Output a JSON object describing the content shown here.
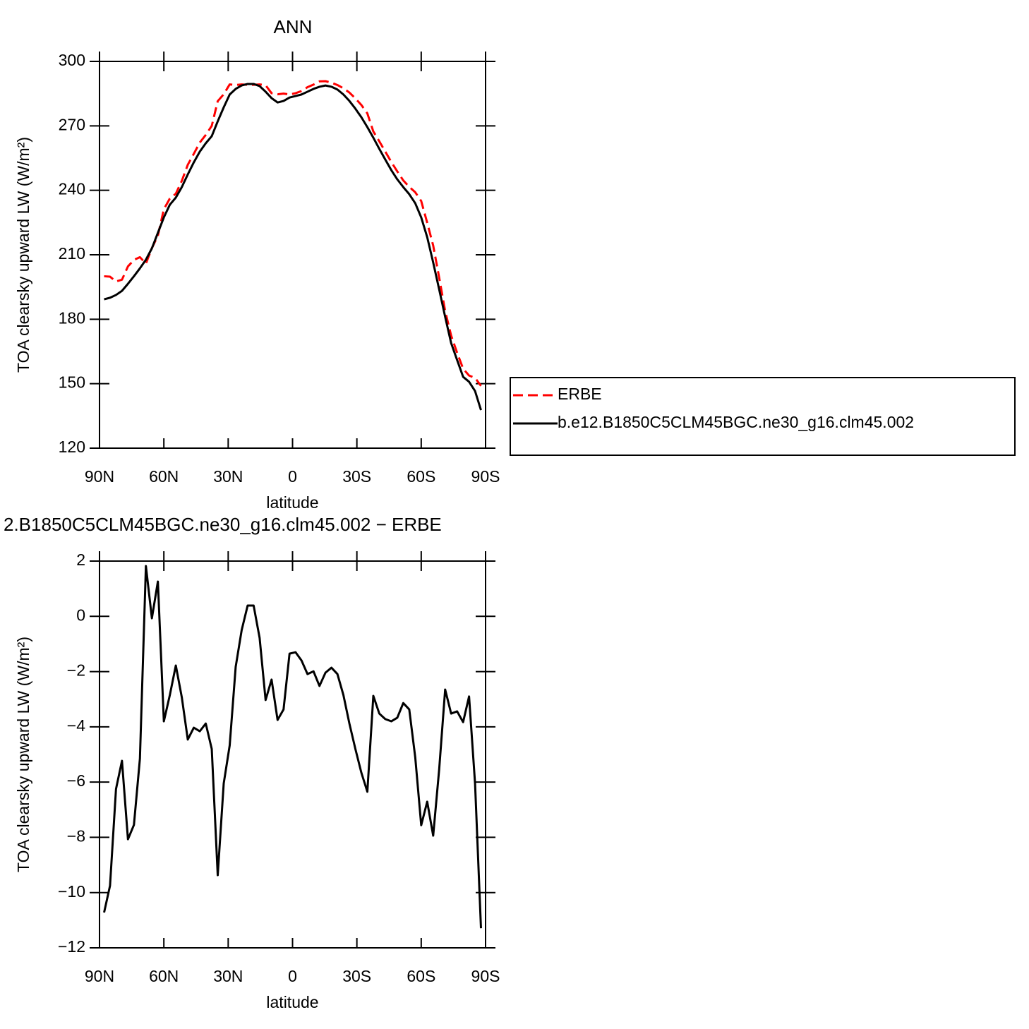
{
  "chart_data": [
    {
      "type": "line",
      "title": "ANN",
      "xlabel": "latitude",
      "ylabel": "TOA clearsky upward LW (W/m²)",
      "x": [
        87.86,
        85.1,
        82.31,
        79.53,
        76.74,
        73.95,
        71.16,
        68.37,
        65.58,
        62.79,
        60,
        57.21,
        54.42,
        51.63,
        48.84,
        46.04,
        43.25,
        40.46,
        37.67,
        34.88,
        32.09,
        29.3,
        26.51,
        23.72,
        20.93,
        18.14,
        15.35,
        12.56,
        9.77,
        6.98,
        4.19,
        1.4,
        -1.4,
        -4.19,
        -6.98,
        -9.77,
        -12.56,
        -15.35,
        -18.14,
        -20.93,
        -23.72,
        -26.51,
        -29.3,
        -32.09,
        -34.88,
        -37.67,
        -40.46,
        -43.25,
        -46.04,
        -48.84,
        -51.63,
        -54.42,
        -57.21,
        -60,
        -62.79,
        -65.58,
        -68.37,
        -71.16,
        -73.95,
        -76.74,
        -79.53,
        -82.31,
        -85.1,
        -87.86
      ],
      "series": [
        {
          "name": "ERBE",
          "color": "#ff0000",
          "dashed": true,
          "values": [
            200.0,
            199.8,
            197.6,
            198.4,
            204.6,
            207.6,
            208.9,
            205.9,
            213.1,
            218.9,
            231.2,
            236.2,
            238.4,
            244.4,
            251.9,
            257.0,
            262.2,
            265.8,
            270.0,
            281.5,
            284.7,
            289.3,
            289.0,
            289.3,
            289.1,
            289.1,
            289.3,
            288.9,
            285.2,
            284.7,
            285.0,
            284.6,
            285.2,
            286.2,
            288.0,
            289.2,
            290.7,
            290.8,
            290.1,
            289.0,
            287.5,
            285.5,
            282.8,
            279.7,
            275.8,
            267.4,
            262.8,
            258.0,
            253.2,
            248.8,
            244.6,
            241.6,
            239.1,
            235.0,
            224.9,
            214.3,
            199.4,
            183.8,
            172.4,
            164.4,
            157.0,
            153.8,
            152.7,
            149.0
          ]
        },
        {
          "name": "b.e12.B1850C5CLM45BGC.ne30_g16.clm45.002",
          "color": "#000000",
          "dashed": false,
          "values": [
            189.3,
            190.0,
            191.3,
            193.2,
            196.5,
            200.0,
            203.7,
            207.7,
            213.0,
            220.2,
            227.4,
            233.3,
            236.6,
            241.5,
            247.4,
            253.0,
            258.0,
            261.9,
            265.2,
            272.1,
            278.6,
            284.6,
            287.2,
            288.8,
            289.5,
            289.5,
            288.5,
            285.9,
            282.9,
            280.9,
            281.6,
            283.2,
            283.9,
            284.6,
            285.9,
            287.2,
            288.2,
            288.8,
            288.2,
            286.9,
            284.6,
            281.6,
            278.0,
            274.0,
            269.4,
            264.5,
            259.3,
            254.3,
            249.4,
            245.1,
            241.5,
            238.2,
            234.0,
            227.4,
            218.2,
            206.4,
            193.9,
            181.1,
            168.9,
            161.0,
            153.2,
            150.9,
            146.6,
            137.7
          ]
        }
      ],
      "xlim": [
        90,
        -90
      ],
      "xticks": [
        {
          "value": 90,
          "label": "90N"
        },
        {
          "value": 60,
          "label": "60N"
        },
        {
          "value": 30,
          "label": "30N"
        },
        0,
        {
          "value": -30,
          "label": "30S"
        },
        {
          "value": -60,
          "label": "60S"
        },
        {
          "value": -90,
          "label": "90S"
        }
      ],
      "ylim": [
        120,
        300
      ],
      "yticks": [
        120,
        150,
        180,
        210,
        240,
        270,
        300
      ],
      "legend": "right"
    },
    {
      "type": "line",
      "title": "2.B1850C5CLM45BGC.ne30_g16.clm45.002 − ERBE",
      "xlabel": "latitude",
      "ylabel": "TOA clearsky upward LW (W/m²)",
      "x": [
        87.86,
        85.1,
        82.31,
        79.53,
        76.74,
        73.95,
        71.16,
        68.37,
        65.58,
        62.79,
        60,
        57.21,
        54.42,
        51.63,
        48.84,
        46.04,
        43.25,
        40.46,
        37.67,
        34.88,
        32.09,
        29.3,
        26.51,
        23.72,
        20.93,
        18.14,
        15.35,
        12.56,
        9.77,
        6.98,
        4.19,
        1.4,
        -1.4,
        -4.19,
        -6.98,
        -9.77,
        -12.56,
        -15.35,
        -18.14,
        -20.93,
        -23.72,
        -26.51,
        -29.3,
        -32.09,
        -34.88,
        -37.67,
        -40.46,
        -43.25,
        -46.04,
        -48.84,
        -51.63,
        -54.42,
        -57.21,
        -60,
        -62.79,
        -65.58,
        -68.37,
        -71.16,
        -73.95,
        -76.74,
        -79.53,
        -82.31,
        -85.1,
        -87.86
      ],
      "series": [
        {
          "color": "#000000",
          "dashed": false,
          "values": [
            -10.72,
            -9.75,
            -6.25,
            -5.23,
            -8.07,
            -7.55,
            -5.15,
            1.82,
            -0.07,
            1.26,
            -3.8,
            -2.85,
            -1.78,
            -2.93,
            -4.46,
            -4.03,
            -4.16,
            -3.88,
            -4.8,
            -9.37,
            -6.05,
            -4.67,
            -1.83,
            -0.5,
            0.39,
            0.39,
            -0.78,
            -3.03,
            -2.29,
            -3.75,
            -3.37,
            -1.35,
            -1.3,
            -1.6,
            -2.09,
            -1.99,
            -2.52,
            -2.04,
            -1.86,
            -2.09,
            -2.85,
            -3.88,
            -4.8,
            -5.66,
            -6.35,
            -2.88,
            -3.52,
            -3.72,
            -3.8,
            -3.67,
            -3.14,
            -3.37,
            -5.1,
            -7.56,
            -6.71,
            -7.94,
            -5.54,
            -2.65,
            -3.52,
            -3.44,
            -3.83,
            -2.9,
            -6.05,
            -11.29
          ]
        }
      ],
      "xlim": [
        90,
        -90
      ],
      "xticks": [
        {
          "value": 90,
          "label": "90N"
        },
        {
          "value": 60,
          "label": "60N"
        },
        {
          "value": 30,
          "label": "30N"
        },
        0,
        {
          "value": -30,
          "label": "30S"
        },
        {
          "value": -60,
          "label": "60S"
        },
        {
          "value": -90,
          "label": "90S"
        }
      ],
      "ylim": [
        -12,
        2
      ],
      "yticks": [
        {
          "value": -12,
          "label": "−12"
        },
        {
          "value": -10,
          "label": "−10"
        },
        {
          "value": -8,
          "label": "−8"
        },
        {
          "value": -6,
          "label": "−6"
        },
        {
          "value": -4,
          "label": "−4"
        },
        {
          "value": -2,
          "label": "−2"
        },
        0,
        2
      ]
    }
  ]
}
